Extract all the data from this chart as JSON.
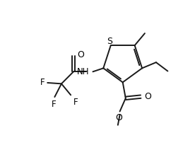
{
  "bg_color": "#ffffff",
  "line_color": "#1a1a1a",
  "line_width": 1.4,
  "figsize": [
    2.76,
    2.12
  ],
  "dpi": 100,
  "xlim": [
    0,
    10
  ],
  "ylim": [
    0,
    7.65
  ]
}
